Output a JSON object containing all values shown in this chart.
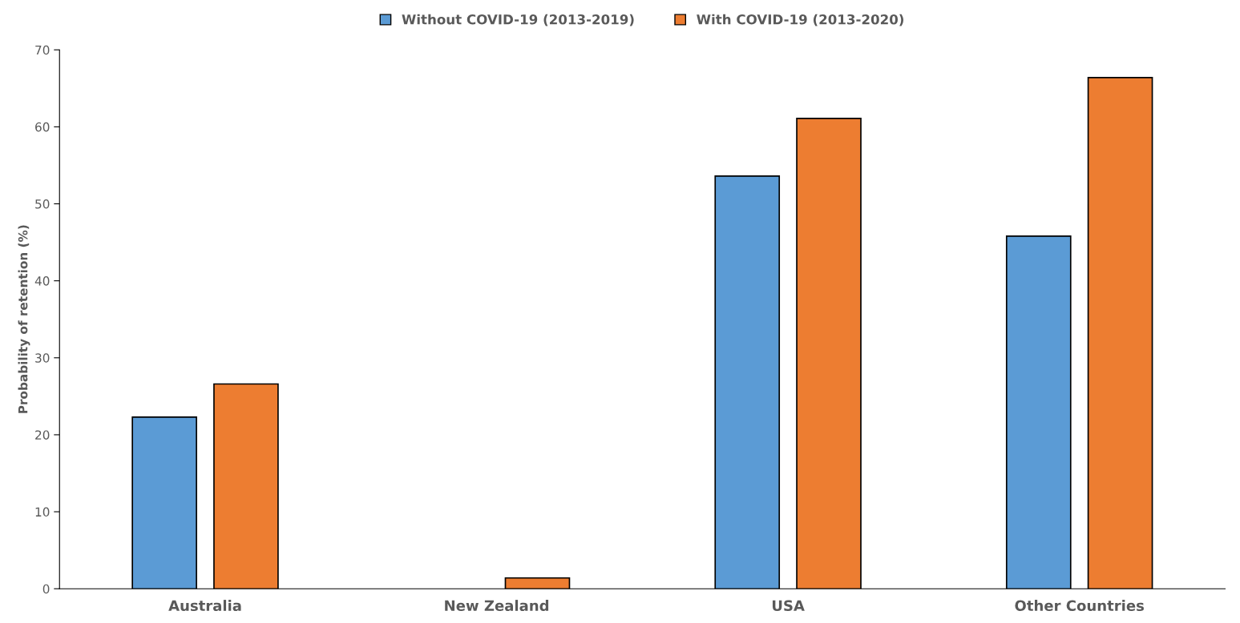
{
  "chart_data": {
    "type": "bar",
    "ylabel": "Probability of retention (%)",
    "categories": [
      "Australia",
      "New Zealand",
      "USA",
      "Other Countries"
    ],
    "series": [
      {
        "name": "Without COVID-19 (2013-2019)",
        "color": "#5b9bd5",
        "values": [
          22.3,
          null,
          53.6,
          45.8
        ]
      },
      {
        "name": "With COVID-19 (2013-2020)",
        "color": "#ed7d31",
        "values": [
          26.6,
          1.4,
          61.1,
          66.4
        ]
      }
    ],
    "ylim": [
      0,
      70
    ],
    "yticks": [
      0,
      10,
      20,
      30,
      40,
      50,
      60,
      70
    ],
    "grid": false,
    "legend": "top"
  }
}
